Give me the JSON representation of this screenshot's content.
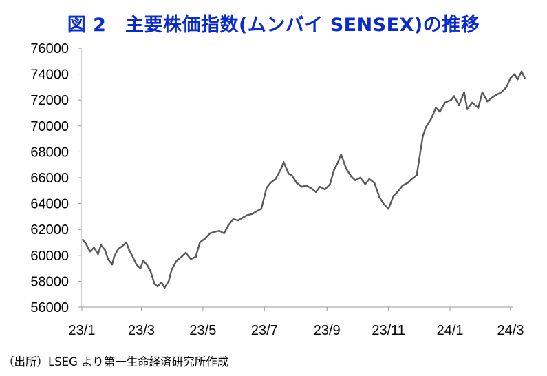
{
  "title": "図 2　主要株価指数(ムンバイ SENSEX)の推移",
  "source": "（出所）LSEG より第一生命経済研究所作成",
  "chart_data": {
    "type": "line",
    "title": "図 2　主要株価指数(ムンバイ SENSEX)の推移",
    "xlabel": "",
    "ylabel": "",
    "ylim": [
      56000,
      76000
    ],
    "yticks": [
      "76000",
      "74000",
      "72000",
      "70000",
      "68000",
      "66000",
      "64000",
      "62000",
      "60000",
      "58000",
      "56000"
    ],
    "xticks": [
      "23/1",
      "23/3",
      "23/5",
      "23/7",
      "23/9",
      "23/11",
      "24/1",
      "24/3"
    ],
    "grid": false,
    "color": "#595959",
    "series": [
      {
        "name": "",
        "dates": [
          "2023-01-02",
          "2023-01-05",
          "2023-01-09",
          "2023-01-13",
          "2023-01-17",
          "2023-01-20",
          "2023-01-24",
          "2023-01-27",
          "2023-01-31",
          "2023-02-02",
          "2023-02-06",
          "2023-02-10",
          "2023-02-14",
          "2023-02-17",
          "2023-02-21",
          "2023-02-24",
          "2023-02-28",
          "2023-03-03",
          "2023-03-07",
          "2023-03-10",
          "2023-03-14",
          "2023-03-17",
          "2023-03-21",
          "2023-03-24",
          "2023-03-28",
          "2023-03-31",
          "2023-04-05",
          "2023-04-10",
          "2023-04-14",
          "2023-04-19",
          "2023-04-24",
          "2023-04-28",
          "2023-05-03",
          "2023-05-08",
          "2023-05-12",
          "2023-05-17",
          "2023-05-22",
          "2023-05-26",
          "2023-05-31",
          "2023-06-05",
          "2023-06-09",
          "2023-06-14",
          "2023-06-19",
          "2023-06-23",
          "2023-06-28",
          "2023-07-03",
          "2023-07-07",
          "2023-07-12",
          "2023-07-17",
          "2023-07-20",
          "2023-07-25",
          "2023-07-28",
          "2023-08-02",
          "2023-08-07",
          "2023-08-11",
          "2023-08-16",
          "2023-08-21",
          "2023-08-25",
          "2023-08-30",
          "2023-09-04",
          "2023-09-08",
          "2023-09-12",
          "2023-09-15",
          "2023-09-20",
          "2023-09-25",
          "2023-09-29",
          "2023-10-04",
          "2023-10-09",
          "2023-10-13",
          "2023-10-18",
          "2023-10-23",
          "2023-10-27",
          "2023-11-01",
          "2023-11-06",
          "2023-11-10",
          "2023-11-15",
          "2023-11-20",
          "2023-11-24",
          "2023-11-29",
          "2023-12-01",
          "2023-12-05",
          "2023-12-08",
          "2023-12-13",
          "2023-12-18",
          "2023-12-22",
          "2023-12-27",
          "2024-01-02",
          "2024-01-05",
          "2024-01-10",
          "2024-01-15",
          "2024-01-18",
          "2024-01-23",
          "2024-01-29",
          "2024-02-02",
          "2024-02-07",
          "2024-02-12",
          "2024-02-16",
          "2024-02-21",
          "2024-02-26",
          "2024-03-01",
          "2024-03-05",
          "2024-03-08",
          "2024-03-12",
          "2024-03-15"
        ],
        "values": [
          61200,
          60900,
          60300,
          60600,
          60100,
          60800,
          60400,
          59700,
          59300,
          59900,
          60500,
          60700,
          61000,
          60400,
          59800,
          59300,
          59000,
          59600,
          59200,
          58800,
          57800,
          57600,
          57900,
          57500,
          58000,
          58900,
          59600,
          59900,
          60200,
          59700,
          59900,
          61000,
          61300,
          61700,
          61800,
          61900,
          61700,
          62300,
          62800,
          62700,
          62900,
          63100,
          63200,
          63400,
          63600,
          65200,
          65600,
          65900,
          66600,
          67200,
          66300,
          66200,
          65600,
          65300,
          65400,
          65200,
          64900,
          65300,
          65100,
          65500,
          66600,
          67200,
          67800,
          66700,
          66100,
          65800,
          66000,
          65500,
          65900,
          65600,
          64500,
          64000,
          63600,
          64600,
          64900,
          65400,
          65600,
          65900,
          66200,
          67200,
          69200,
          69900,
          70500,
          71400,
          71100,
          71800,
          72000,
          72300,
          71600,
          72600,
          71300,
          71800,
          71400,
          72600,
          71900,
          72200,
          72400,
          72600,
          73000,
          73700,
          74000,
          73600,
          74200,
          73700
        ]
      }
    ]
  }
}
